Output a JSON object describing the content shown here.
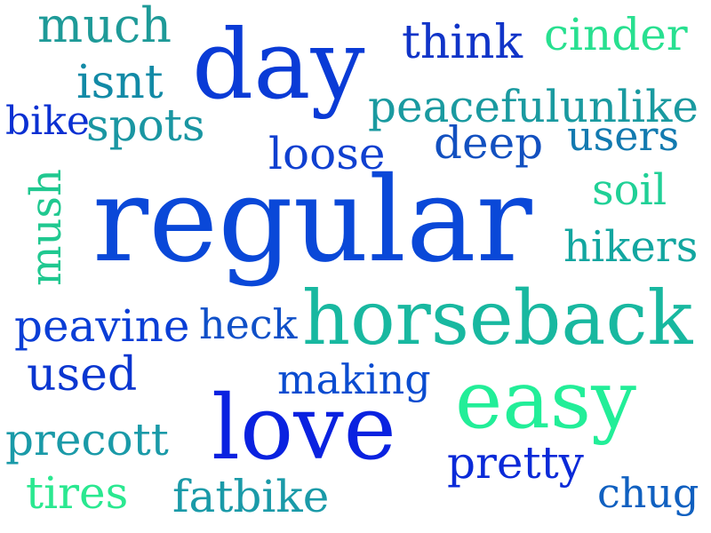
{
  "words": [
    {
      "text": "much",
      "color": "#1e9a98"
    },
    {
      "text": "day",
      "color": "#0a3bd6"
    },
    {
      "text": "think",
      "color": "#1034c8"
    },
    {
      "text": "cinder",
      "color": "#28e090"
    },
    {
      "text": "isnt",
      "color": "#128aa6"
    },
    {
      "text": "bike",
      "color": "#0a30d2"
    },
    {
      "text": "spots",
      "color": "#1a96a2"
    },
    {
      "text": "peacefulunlike",
      "color": "#1a9aa0"
    },
    {
      "text": "users",
      "color": "#127ab0"
    },
    {
      "text": "deep",
      "color": "#1250c0"
    },
    {
      "text": "loose",
      "color": "#1040d0"
    },
    {
      "text": "mush",
      "color": "#20c890"
    },
    {
      "text": "soil",
      "color": "#20d096"
    },
    {
      "text": "regular",
      "color": "#0a48d8"
    },
    {
      "text": "hikers",
      "color": "#12a6a0"
    },
    {
      "text": "horseback",
      "color": "#18b8a0"
    },
    {
      "text": "peavine",
      "color": "#0a3ed6"
    },
    {
      "text": "heck",
      "color": "#1050c8"
    },
    {
      "text": "used",
      "color": "#0a36d0"
    },
    {
      "text": "making",
      "color": "#0a4cd0"
    },
    {
      "text": "easy",
      "color": "#22ee98"
    },
    {
      "text": "love",
      "color": "#0a22e0"
    },
    {
      "text": "precott",
      "color": "#1a9aa8"
    },
    {
      "text": "pretty",
      "color": "#0a2ad8"
    },
    {
      "text": "tires",
      "color": "#2ae890"
    },
    {
      "text": "fatbike",
      "color": "#1a9aa8"
    },
    {
      "text": "chug",
      "color": "#1060c0"
    }
  ]
}
